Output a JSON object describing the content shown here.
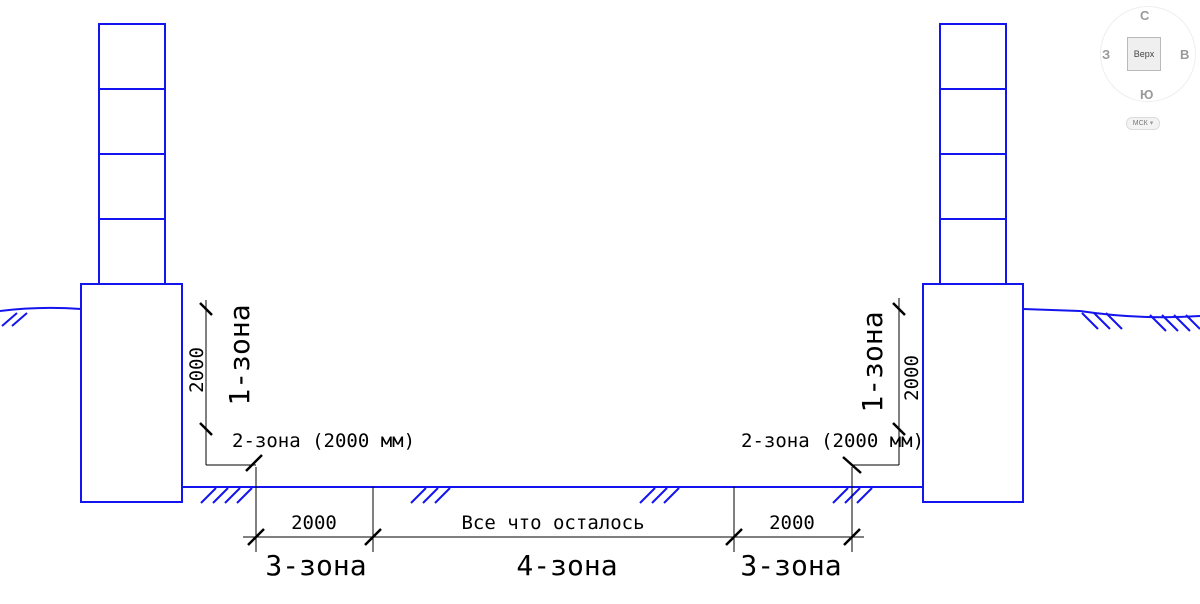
{
  "drawing": {
    "stroke_color": "#1414ee",
    "dimension_color": "#000000",
    "labels": {
      "dim_2000_left": "2000",
      "dim_2000_right": "2000",
      "zone1_left": "1-зона",
      "zone1_right": "1-зона",
      "zone2_left": "2-зона (2000 мм)",
      "zone2_right": "2-зона (2000 мм)",
      "bottom_dim_left": "2000",
      "bottom_dim_mid": "Все что осталось",
      "bottom_dim_right": "2000",
      "zone3_left": "3-зона",
      "zone4": "4-зона",
      "zone3_right": "3-зона"
    }
  },
  "viewcube": {
    "north": "С",
    "south": "Ю",
    "west": "З",
    "east": "В",
    "face": "Верх",
    "ucs": "МСК",
    "ucs_caret": "▾"
  }
}
